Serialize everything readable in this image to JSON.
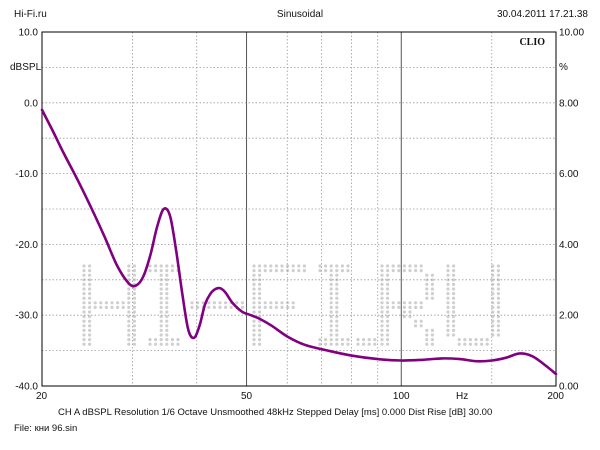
{
  "header": {
    "source": "Hi-Fi.ru",
    "mode": "Sinusoidal",
    "timestamp": "30.04.2011 17.21.38"
  },
  "brand": "CLIO",
  "footer": {
    "settings": "CH A   dBSPL   Resolution 1/6 Octave   Unsmoothed   48kHz   Stepped     Delay [ms] 0.000    Dist Rise [dB] 30.00",
    "file": "File: кни 96.sin"
  },
  "watermark": "HI-FI.RU",
  "colors": {
    "trace": "#800080",
    "grid": "#9a9a9a",
    "watermark": "#cfcfcf"
  },
  "chart_data": {
    "type": "line",
    "x_scale": "log",
    "xlim": [
      20,
      200
    ],
    "ylim": [
      -40,
      10
    ],
    "ylim_right": [
      0,
      10
    ],
    "xlabel": "Hz",
    "ylabel": "dBSPL",
    "ylabel_right": "%",
    "x_ticks": [
      {
        "v": 20,
        "label": "20"
      },
      {
        "v": 50,
        "label": "50"
      },
      {
        "v": 100,
        "label": "100"
      },
      {
        "v": 200,
        "label": "200"
      }
    ],
    "y_ticks": [
      {
        "v": 10,
        "label": "10.0"
      },
      {
        "v": 0,
        "label": "0.0"
      },
      {
        "v": -10,
        "label": "-10.0"
      },
      {
        "v": -20,
        "label": "-20.0"
      },
      {
        "v": -30,
        "label": "-30.0"
      },
      {
        "v": -40,
        "label": "-40.0"
      }
    ],
    "y_ticks_right": [
      {
        "v": 10,
        "label": "10.00"
      },
      {
        "v": 8,
        "label": "8.00"
      },
      {
        "v": 6,
        "label": "6.00"
      },
      {
        "v": 4,
        "label": "4.00"
      },
      {
        "v": 2,
        "label": "2.00"
      },
      {
        "v": 0,
        "label": "0.00"
      }
    ],
    "grid": true,
    "series": [
      {
        "x": [
          20,
          21,
          22,
          23.5,
          25,
          26.5,
          28,
          29.5,
          30.5,
          31.5,
          32.5,
          33.5,
          34.5,
          35.5,
          36.5,
          37.5,
          38.5,
          39.5,
          40.5,
          41.5,
          42.5,
          43.5,
          44.5,
          45.5,
          47,
          49,
          51,
          53,
          56,
          60,
          65,
          72,
          80,
          90,
          100,
          110,
          120,
          130,
          140,
          150,
          160,
          170,
          180,
          190,
          200
        ],
        "y": [
          -1,
          -4,
          -7,
          -11,
          -15,
          -19,
          -23,
          -25.5,
          -25.8,
          -24.5,
          -21.5,
          -17.5,
          -15,
          -16,
          -21,
          -27,
          -32,
          -33.2,
          -31.5,
          -28.5,
          -27,
          -26.3,
          -26.2,
          -26.8,
          -28.3,
          -29.5,
          -30,
          -30.5,
          -31.5,
          -33,
          -34.2,
          -35,
          -35.7,
          -36.2,
          -36.4,
          -36.3,
          -36.1,
          -36.2,
          -36.5,
          -36.4,
          -36,
          -35.4,
          -35.8,
          -37,
          -38.3
        ]
      }
    ]
  }
}
